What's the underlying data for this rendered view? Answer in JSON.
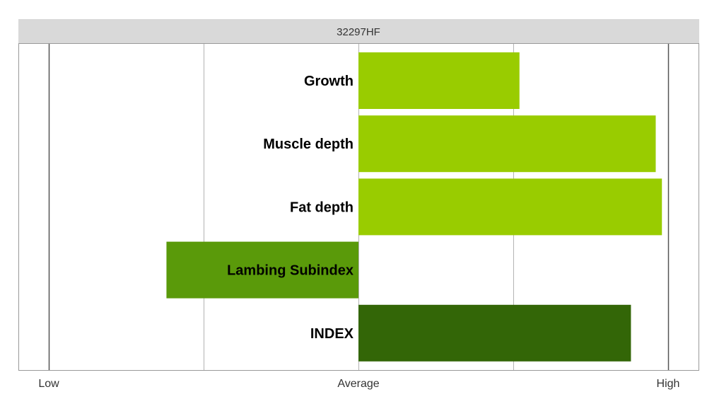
{
  "chart_data": {
    "type": "bar",
    "orientation": "horizontal",
    "title": "32297HF",
    "categories": [
      "Growth",
      "Muscle depth",
      "Fat depth",
      "Lambing Subindex",
      "INDEX"
    ],
    "values": [
      0.52,
      0.96,
      0.98,
      -0.62,
      0.88
    ],
    "xlim": [
      -1,
      1
    ],
    "x_tick_labels": [
      {
        "value": -1,
        "label": "Low"
      },
      {
        "value": 0,
        "label": "Average"
      },
      {
        "value": 1,
        "label": "High"
      }
    ],
    "gridlines": [
      -1,
      -0.5,
      0,
      0.5,
      1
    ],
    "bar_colors": [
      "#99cc00",
      "#99cc00",
      "#99cc00",
      "#5a9a0a",
      "#336607"
    ],
    "grid": true
  }
}
